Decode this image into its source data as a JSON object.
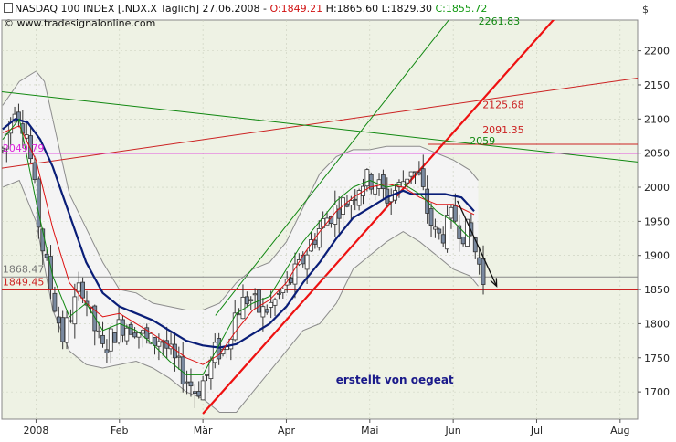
{
  "header": {
    "symbol_text": "NASDAQ 100 INDEX [.NDX.X  Täglich] 27.06.2008 -",
    "open_text": "O:1849.21",
    "high_text": "H:1865.60",
    "low_text": "L:1829.30",
    "close_text": "C:1855.72",
    "source_text": "© www.tradesignalonline.com"
  },
  "colors": {
    "plot_bg": "#eef2e4",
    "band_fill": "#f4f4f4",
    "band_line": "#8c8c8c",
    "candle_up": "#ffffff",
    "candle_down": "#7a8aa0",
    "ma_blue": "#0a1e78",
    "ma_red": "#dd1111",
    "ma_green": "#118811",
    "trend_red": "#ee1111",
    "magenta": "#dd22dd",
    "dark_red": "#cc2222",
    "level_gray": "#888888"
  },
  "chart_data": {
    "type": "candlestick",
    "title": "NASDAQ 100 INDEX [.NDX.X  Täglich] 27.06.2008",
    "currency_label": "$",
    "y_ticks": [
      1700,
      1750,
      1800,
      1850,
      1900,
      1950,
      2000,
      2050,
      2100,
      2150,
      2200
    ],
    "ylim": [
      1660,
      2245
    ],
    "x_labels": [
      {
        "label": "2008",
        "month": 1.0
      },
      {
        "label": "Feb",
        "month": 2.0
      },
      {
        "label": "Mär",
        "month": 3.0
      },
      {
        "label": "Apr",
        "month": 4.0
      },
      {
        "label": "Mai",
        "month": 5.0
      },
      {
        "label": "Jun",
        "month": 6.0
      },
      {
        "label": "Jul",
        "month": 7.0
      },
      {
        "label": "Aug",
        "month": 8.0
      }
    ],
    "xlim": [
      0.59,
      8.21
    ],
    "candle_anchors": [
      [
        0.6,
        2055
      ],
      [
        0.75,
        2125
      ],
      [
        0.9,
        2075
      ],
      [
        1.05,
        1930
      ],
      [
        1.2,
        1840
      ],
      [
        1.32,
        1780
      ],
      [
        1.45,
        1825
      ],
      [
        1.55,
        1860
      ],
      [
        1.65,
        1810
      ],
      [
        1.8,
        1760
      ],
      [
        1.95,
        1790
      ],
      [
        2.05,
        1800
      ],
      [
        2.2,
        1795
      ],
      [
        2.35,
        1770
      ],
      [
        2.5,
        1780
      ],
      [
        2.65,
        1745
      ],
      [
        2.8,
        1720
      ],
      [
        2.92,
        1700
      ],
      [
        3.05,
        1725
      ],
      [
        3.15,
        1760
      ],
      [
        3.25,
        1760
      ],
      [
        3.4,
        1820
      ],
      [
        3.55,
        1840
      ],
      [
        3.7,
        1815
      ],
      [
        3.85,
        1830
      ],
      [
        4.0,
        1855
      ],
      [
        4.15,
        1880
      ],
      [
        4.3,
        1920
      ],
      [
        4.45,
        1950
      ],
      [
        4.6,
        1970
      ],
      [
        4.75,
        1980
      ],
      [
        4.9,
        2010
      ],
      [
        5.05,
        2010
      ],
      [
        5.2,
        1985
      ],
      [
        5.35,
        2000
      ],
      [
        5.5,
        2030
      ],
      [
        5.6,
        2010
      ],
      [
        5.7,
        1960
      ],
      [
        5.8,
        1925
      ],
      [
        5.9,
        1935
      ],
      [
        6.0,
        1960
      ],
      [
        6.1,
        1935
      ],
      [
        6.2,
        1935
      ],
      [
        6.3,
        1890
      ],
      [
        6.38,
        1856
      ]
    ],
    "moving_averages": [
      {
        "color_key": "ma_blue",
        "width": 2.2,
        "points": [
          [
            0.6,
            2085
          ],
          [
            0.75,
            2100
          ],
          [
            0.9,
            2095
          ],
          [
            1.05,
            2070
          ],
          [
            1.2,
            2030
          ],
          [
            1.4,
            1960
          ],
          [
            1.6,
            1890
          ],
          [
            1.8,
            1845
          ],
          [
            2.0,
            1825
          ],
          [
            2.2,
            1815
          ],
          [
            2.4,
            1805
          ],
          [
            2.6,
            1790
          ],
          [
            2.8,
            1775
          ],
          [
            3.0,
            1768
          ],
          [
            3.2,
            1765
          ],
          [
            3.4,
            1770
          ],
          [
            3.6,
            1785
          ],
          [
            3.8,
            1800
          ],
          [
            4.0,
            1825
          ],
          [
            4.2,
            1860
          ],
          [
            4.4,
            1890
          ],
          [
            4.6,
            1925
          ],
          [
            4.8,
            1955
          ],
          [
            5.0,
            1970
          ],
          [
            5.2,
            1985
          ],
          [
            5.4,
            1995
          ],
          [
            5.5,
            1990
          ],
          [
            5.7,
            1990
          ],
          [
            5.9,
            1990
          ],
          [
            6.1,
            1985
          ],
          [
            6.25,
            1965
          ]
        ]
      },
      {
        "color_key": "ma_red",
        "width": 1,
        "points": [
          [
            0.6,
            2080
          ],
          [
            0.8,
            2090
          ],
          [
            1.0,
            2040
          ],
          [
            1.2,
            1940
          ],
          [
            1.4,
            1860
          ],
          [
            1.6,
            1830
          ],
          [
            1.8,
            1810
          ],
          [
            2.0,
            1815
          ],
          [
            2.2,
            1800
          ],
          [
            2.4,
            1785
          ],
          [
            2.6,
            1768
          ],
          [
            2.8,
            1750
          ],
          [
            3.0,
            1740
          ],
          [
            3.2,
            1755
          ],
          [
            3.4,
            1790
          ],
          [
            3.6,
            1820
          ],
          [
            3.8,
            1835
          ],
          [
            4.0,
            1860
          ],
          [
            4.2,
            1900
          ],
          [
            4.4,
            1935
          ],
          [
            4.6,
            1965
          ],
          [
            4.8,
            1985
          ],
          [
            5.0,
            2000
          ],
          [
            5.2,
            2005
          ],
          [
            5.4,
            2000
          ],
          [
            5.6,
            1985
          ],
          [
            5.8,
            1975
          ],
          [
            6.0,
            1975
          ],
          [
            6.25,
            1960
          ]
        ]
      },
      {
        "color_key": "ma_green",
        "width": 1,
        "points": [
          [
            0.6,
            2070
          ],
          [
            0.8,
            2100
          ],
          [
            1.0,
            1980
          ],
          [
            1.2,
            1870
          ],
          [
            1.4,
            1810
          ],
          [
            1.6,
            1830
          ],
          [
            1.8,
            1790
          ],
          [
            2.0,
            1800
          ],
          [
            2.2,
            1790
          ],
          [
            2.4,
            1770
          ],
          [
            2.6,
            1745
          ],
          [
            2.8,
            1725
          ],
          [
            3.0,
            1725
          ],
          [
            3.2,
            1770
          ],
          [
            3.4,
            1815
          ],
          [
            3.6,
            1830
          ],
          [
            3.8,
            1840
          ],
          [
            4.0,
            1880
          ],
          [
            4.2,
            1920
          ],
          [
            4.4,
            1950
          ],
          [
            4.6,
            1980
          ],
          [
            4.8,
            2000
          ],
          [
            5.0,
            2010
          ],
          [
            5.2,
            2000
          ],
          [
            5.4,
            2005
          ],
          [
            5.6,
            1990
          ],
          [
            5.8,
            1965
          ],
          [
            6.0,
            1950
          ],
          [
            6.2,
            1925
          ]
        ]
      }
    ],
    "band_upper": [
      [
        0.6,
        2120
      ],
      [
        0.8,
        2155
      ],
      [
        1.0,
        2170
      ],
      [
        1.1,
        2155
      ],
      [
        1.2,
        2100
      ],
      [
        1.4,
        1990
      ],
      [
        1.6,
        1940
      ],
      [
        1.8,
        1890
      ],
      [
        2.0,
        1850
      ],
      [
        2.2,
        1845
      ],
      [
        2.4,
        1830
      ],
      [
        2.6,
        1825
      ],
      [
        2.8,
        1820
      ],
      [
        3.0,
        1820
      ],
      [
        3.2,
        1830
      ],
      [
        3.4,
        1860
      ],
      [
        3.6,
        1880
      ],
      [
        3.8,
        1890
      ],
      [
        4.0,
        1920
      ],
      [
        4.2,
        1970
      ],
      [
        4.4,
        2020
      ],
      [
        4.6,
        2045
      ],
      [
        4.8,
        2055
      ],
      [
        5.0,
        2055
      ],
      [
        5.2,
        2060
      ],
      [
        5.4,
        2060
      ],
      [
        5.6,
        2060
      ],
      [
        5.8,
        2050
      ],
      [
        6.0,
        2040
      ],
      [
        6.2,
        2025
      ],
      [
        6.3,
        2010
      ]
    ],
    "band_lower": [
      [
        0.6,
        2000
      ],
      [
        0.8,
        2010
      ],
      [
        1.0,
        1950
      ],
      [
        1.2,
        1820
      ],
      [
        1.4,
        1760
      ],
      [
        1.6,
        1740
      ],
      [
        1.8,
        1735
      ],
      [
        2.0,
        1740
      ],
      [
        2.2,
        1745
      ],
      [
        2.4,
        1735
      ],
      [
        2.6,
        1720
      ],
      [
        2.8,
        1700
      ],
      [
        3.0,
        1690
      ],
      [
        3.2,
        1670
      ],
      [
        3.4,
        1670
      ],
      [
        3.6,
        1700
      ],
      [
        3.8,
        1730
      ],
      [
        4.0,
        1760
      ],
      [
        4.2,
        1790
      ],
      [
        4.4,
        1800
      ],
      [
        4.6,
        1830
      ],
      [
        4.8,
        1880
      ],
      [
        5.0,
        1900
      ],
      [
        5.2,
        1920
      ],
      [
        5.4,
        1935
      ],
      [
        5.6,
        1920
      ],
      [
        5.8,
        1900
      ],
      [
        6.0,
        1880
      ],
      [
        6.2,
        1870
      ],
      [
        6.3,
        1855
      ]
    ],
    "lines": [
      {
        "color_key": "trend_red",
        "width": 2.2,
        "from": [
          3.0,
          1668
        ],
        "to": [
          8.0,
          2355
        ]
      },
      {
        "color_key": "dark_red",
        "width": 1,
        "from": [
          0.59,
          2028
        ],
        "to": [
          8.21,
          2160
        ]
      },
      {
        "color_key": "ma_green",
        "width": 1,
        "from": [
          0.59,
          2140
        ],
        "to": [
          8.21,
          2037
        ]
      },
      {
        "color_key": "ma_green",
        "width": 1,
        "from": [
          3.15,
          1812
        ],
        "to": [
          6.85,
          2385
        ]
      },
      {
        "color_key": "magenta",
        "width": 1,
        "from": [
          0.59,
          2049.79
        ],
        "to": [
          8.21,
          2049.79
        ]
      },
      {
        "color_key": "dark_red",
        "width": 1,
        "from": [
          0.59,
          1849.45
        ],
        "to": [
          8.21,
          1849.45
        ]
      },
      {
        "color_key": "level_gray",
        "width": 1,
        "from": [
          0.59,
          1868.47
        ],
        "to": [
          8.21,
          1868.47
        ]
      },
      {
        "color_key": "dark_red",
        "width": 1,
        "from": [
          5.7,
          2063
        ],
        "to": [
          8.21,
          2063
        ]
      }
    ],
    "arrows": [
      {
        "from": [
          6.05,
          1980
        ],
        "to": [
          6.52,
          1855
        ],
        "color": "#111111"
      }
    ],
    "annotations": [
      {
        "text": "2261.83",
        "x": 6.55,
        "y": 2238,
        "color": "#118811",
        "anchor": "middle"
      },
      {
        "text": "2125.68",
        "x": 6.6,
        "y": 2116,
        "color": "#cc2222",
        "anchor": "middle"
      },
      {
        "text": "2091.35",
        "x": 6.6,
        "y": 2079,
        "color": "#cc2222",
        "anchor": "middle"
      },
      {
        "text": "2059",
        "x": 6.35,
        "y": 2063,
        "color": "#118811",
        "anchor": "middle"
      },
      {
        "text": "2049.79",
        "x": 0.6,
        "y": 2052,
        "color": "#dd22dd",
        "anchor": "start"
      },
      {
        "text": "1868.47",
        "x": 0.6,
        "y": 1875,
        "color": "#777777",
        "anchor": "start"
      },
      {
        "text": "1849.45",
        "x": 0.6,
        "y": 1856,
        "color": "#cc2222",
        "anchor": "start"
      }
    ],
    "watermark_text": "erstellt von oegeat",
    "watermark_pos": [
      5.3,
      1712
    ]
  }
}
